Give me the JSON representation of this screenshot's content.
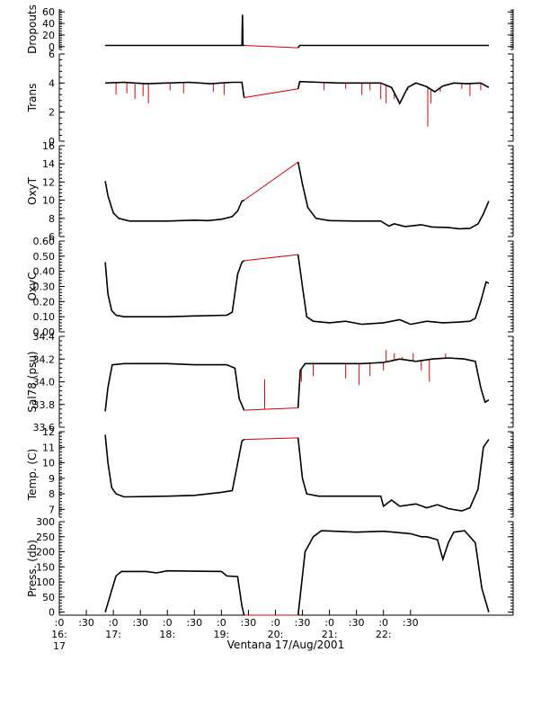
{
  "figure": {
    "caption": "Ventana 17/Aug/2001",
    "x_ticks": [
      {
        "line1": ":0",
        "line2": "16:",
        "line3": "17"
      },
      {
        "line1": ":30",
        "line2": "",
        "line3": ""
      },
      {
        "line1": ":0",
        "line2": "17:",
        "line3": ""
      },
      {
        "line1": ":30",
        "line2": "",
        "line3": ""
      },
      {
        "line1": ":0",
        "line2": "18:",
        "line3": ""
      },
      {
        "line1": ":30",
        "line2": "",
        "line3": ""
      },
      {
        "line1": ":0",
        "line2": "19:",
        "line3": ""
      },
      {
        "line1": ":30",
        "line2": "",
        "line3": ""
      },
      {
        "line1": ":0",
        "line2": "20:",
        "line3": ""
      },
      {
        "line1": ":30",
        "line2": "",
        "line3": ""
      },
      {
        "line1": ":0",
        "line2": "21:",
        "line3": ""
      },
      {
        "line1": ":30",
        "line2": "",
        "line3": ""
      },
      {
        "line1": ":0",
        "line2": "22:",
        "line3": ""
      },
      {
        "line1": ":30",
        "line2": "",
        "line3": ""
      }
    ],
    "colors": {
      "data": "#000000",
      "raw": "#dd0000",
      "axis": "#000000"
    }
  },
  "chart_data": [
    {
      "type": "line",
      "ylabel": "Dropouts",
      "ylim": [
        -5,
        65
      ],
      "ytick_labels": [
        "0",
        "20",
        "40",
        "60"
      ],
      "ytick_values": [
        0,
        20,
        40,
        60
      ],
      "x_unit": "hours_since_16:00",
      "series": [
        {
          "values": [
            [
              0.85,
              2
            ],
            [
              2.35,
              2
            ],
            [
              3.38,
              2
            ],
            [
              3.39,
              55
            ],
            [
              3.4,
              2
            ],
            [
              3.42,
              2
            ],
            [
              4.42,
              -2
            ],
            [
              4.45,
              2
            ],
            [
              7.95,
              2
            ]
          ]
        }
      ]
    },
    {
      "type": "line",
      "ylabel": "Trans",
      "ylim": [
        0,
        6
      ],
      "ytick_labels": [
        "0",
        "2",
        "4",
        "6"
      ],
      "ytick_values": [
        0,
        2,
        4,
        6
      ],
      "x_unit": "hours_since_16:00",
      "series": [
        {
          "values": [
            [
              0.85,
              4.0
            ],
            [
              1.2,
              4.05
            ],
            [
              1.6,
              3.95
            ],
            [
              2.0,
              4.0
            ],
            [
              2.4,
              4.05
            ],
            [
              2.8,
              3.95
            ],
            [
              3.2,
              4.05
            ],
            [
              3.38,
              4.05
            ],
            [
              3.42,
              3.0
            ],
            [
              4.42,
              3.6
            ],
            [
              4.45,
              4.1
            ],
            [
              4.8,
              4.05
            ],
            [
              5.2,
              4.0
            ],
            [
              5.6,
              4.0
            ],
            [
              5.95,
              4.0
            ],
            [
              6.15,
              3.7
            ],
            [
              6.3,
              2.6
            ],
            [
              6.45,
              3.7
            ],
            [
              6.6,
              4.0
            ],
            [
              6.8,
              3.75
            ],
            [
              6.95,
              3.4
            ],
            [
              7.1,
              3.8
            ],
            [
              7.3,
              4.0
            ],
            [
              7.55,
              3.95
            ],
            [
              7.8,
              4.0
            ],
            [
              7.95,
              3.7
            ]
          ]
        }
      ],
      "spikes": [
        [
          1.05,
          3.2
        ],
        [
          1.25,
          3.3
        ],
        [
          1.4,
          2.9
        ],
        [
          1.55,
          3.1
        ],
        [
          1.65,
          2.6
        ],
        [
          2.05,
          3.5
        ],
        [
          2.3,
          3.3
        ],
        [
          2.85,
          3.4
        ],
        [
          3.05,
          3.2
        ],
        [
          4.9,
          3.5
        ],
        [
          5.3,
          3.6
        ],
        [
          5.6,
          3.2
        ],
        [
          5.75,
          3.5
        ],
        [
          5.95,
          2.9
        ],
        [
          6.05,
          2.6
        ],
        [
          6.2,
          2.9
        ],
        [
          6.45,
          3.5
        ],
        [
          6.82,
          1.0
        ],
        [
          6.88,
          2.6
        ],
        [
          7.05,
          3.4
        ],
        [
          7.45,
          3.6
        ],
        [
          7.6,
          3.1
        ],
        [
          7.8,
          3.5
        ]
      ]
    },
    {
      "type": "line",
      "ylabel": "OxyT",
      "ylim": [
        6,
        16
      ],
      "ytick_labels": [
        "6",
        "8",
        "10",
        "12",
        "14",
        "16"
      ],
      "ytick_values": [
        6,
        8,
        10,
        12,
        14,
        16
      ],
      "x_unit": "hours_since_16:00",
      "series": [
        {
          "values": [
            [
              0.85,
              12.1
            ],
            [
              0.9,
              10.5
            ],
            [
              1.0,
              8.6
            ],
            [
              1.1,
              8.0
            ],
            [
              1.3,
              7.7
            ],
            [
              2.0,
              7.7
            ],
            [
              2.5,
              7.8
            ],
            [
              2.75,
              7.75
            ],
            [
              3.0,
              7.9
            ],
            [
              3.2,
              8.2
            ],
            [
              3.3,
              8.8
            ],
            [
              3.38,
              9.9
            ],
            [
              3.42,
              10.0
            ],
            [
              4.42,
              14.2
            ],
            [
              4.5,
              11.8
            ],
            [
              4.6,
              9.2
            ],
            [
              4.75,
              8.0
            ],
            [
              5.0,
              7.75
            ],
            [
              5.5,
              7.7
            ],
            [
              5.95,
              7.7
            ],
            [
              6.1,
              7.15
            ],
            [
              6.2,
              7.4
            ],
            [
              6.4,
              7.1
            ],
            [
              6.7,
              7.3
            ],
            [
              6.9,
              7.05
            ],
            [
              7.2,
              7.0
            ],
            [
              7.4,
              6.85
            ],
            [
              7.6,
              6.9
            ],
            [
              7.75,
              7.4
            ],
            [
              7.85,
              8.5
            ],
            [
              7.95,
              9.9
            ]
          ]
        }
      ]
    },
    {
      "type": "line",
      "ylabel": "OxyC",
      "ylim": [
        0,
        0.6
      ],
      "ytick_labels": [
        "0.00",
        "0.10",
        "0.20",
        "0.30",
        "0.40",
        "0.50",
        "0.60"
      ],
      "ytick_values": [
        0,
        0.1,
        0.2,
        0.3,
        0.4,
        0.5,
        0.6
      ],
      "x_unit": "hours_since_16:00",
      "series": [
        {
          "values": [
            [
              0.85,
              0.46
            ],
            [
              0.9,
              0.25
            ],
            [
              0.97,
              0.14
            ],
            [
              1.05,
              0.11
            ],
            [
              1.2,
              0.1
            ],
            [
              2.0,
              0.1
            ],
            [
              2.5,
              0.105
            ],
            [
              3.1,
              0.11
            ],
            [
              3.2,
              0.13
            ],
            [
              3.3,
              0.38
            ],
            [
              3.38,
              0.46
            ],
            [
              3.42,
              0.47
            ],
            [
              4.42,
              0.51
            ],
            [
              4.5,
              0.3
            ],
            [
              4.58,
              0.1
            ],
            [
              4.7,
              0.07
            ],
            [
              5.0,
              0.06
            ],
            [
              5.3,
              0.07
            ],
            [
              5.6,
              0.05
            ],
            [
              6.0,
              0.06
            ],
            [
              6.3,
              0.08
            ],
            [
              6.5,
              0.05
            ],
            [
              6.8,
              0.07
            ],
            [
              7.1,
              0.06
            ],
            [
              7.4,
              0.065
            ],
            [
              7.6,
              0.07
            ],
            [
              7.7,
              0.09
            ],
            [
              7.8,
              0.2
            ],
            [
              7.9,
              0.33
            ],
            [
              7.95,
              0.32
            ]
          ]
        }
      ]
    },
    {
      "type": "line",
      "ylabel": "Sal78 (psu)",
      "ylim": [
        33.6,
        34.4
      ],
      "ytick_labels": [
        "33.6",
        "33.8",
        "34.0",
        "34.2",
        "34.4"
      ],
      "ytick_values": [
        33.6,
        33.8,
        34.0,
        34.2,
        34.4
      ],
      "x_unit": "hours_since_16:00",
      "series": [
        {
          "values": [
            [
              0.85,
              33.74
            ],
            [
              0.9,
              33.95
            ],
            [
              0.98,
              34.15
            ],
            [
              1.2,
              34.16
            ],
            [
              2.0,
              34.16
            ],
            [
              2.5,
              34.15
            ],
            [
              3.1,
              34.15
            ],
            [
              3.25,
              34.12
            ],
            [
              3.33,
              33.85
            ],
            [
              3.42,
              33.75
            ],
            [
              4.42,
              33.77
            ],
            [
              4.46,
              34.1
            ],
            [
              4.55,
              34.16
            ],
            [
              5.0,
              34.16
            ],
            [
              5.6,
              34.16
            ],
            [
              6.0,
              34.17
            ],
            [
              6.3,
              34.2
            ],
            [
              6.6,
              34.18
            ],
            [
              6.9,
              34.2
            ],
            [
              7.2,
              34.21
            ],
            [
              7.5,
              34.2
            ],
            [
              7.7,
              34.18
            ],
            [
              7.8,
              33.95
            ],
            [
              7.88,
              33.82
            ],
            [
              7.95,
              33.84
            ]
          ]
        }
      ],
      "spikes": [
        [
          3.8,
          34.02
        ],
        [
          4.48,
          34.0
        ],
        [
          4.7,
          34.05
        ],
        [
          5.3,
          34.03
        ],
        [
          5.55,
          33.97
        ],
        [
          5.75,
          34.05
        ],
        [
          6.0,
          34.1
        ],
        [
          6.05,
          34.28
        ],
        [
          6.2,
          34.25
        ],
        [
          6.35,
          34.22
        ],
        [
          6.55,
          34.25
        ],
        [
          6.7,
          34.1
        ],
        [
          6.85,
          34.0
        ],
        [
          7.15,
          34.25
        ]
      ]
    },
    {
      "type": "line",
      "ylabel": "Temp. (C)",
      "ylim": [
        6.5,
        12
      ],
      "ytick_labels": [
        "7",
        "8",
        "9",
        "10",
        "11",
        "12"
      ],
      "ytick_values": [
        7,
        8,
        9,
        10,
        11,
        12
      ],
      "x_unit": "hours_since_16:00",
      "series": [
        {
          "values": [
            [
              0.85,
              11.8
            ],
            [
              0.9,
              10.0
            ],
            [
              0.97,
              8.4
            ],
            [
              1.05,
              8.0
            ],
            [
              1.2,
              7.8
            ],
            [
              2.0,
              7.85
            ],
            [
              2.5,
              7.9
            ],
            [
              3.0,
              8.1
            ],
            [
              3.2,
              8.2
            ],
            [
              3.28,
              9.6
            ],
            [
              3.38,
              11.4
            ],
            [
              3.42,
              11.5
            ],
            [
              4.42,
              11.6
            ],
            [
              4.5,
              9.0
            ],
            [
              4.58,
              8.0
            ],
            [
              4.8,
              7.85
            ],
            [
              5.5,
              7.85
            ],
            [
              5.95,
              7.85
            ],
            [
              6.0,
              7.2
            ],
            [
              6.15,
              7.6
            ],
            [
              6.3,
              7.2
            ],
            [
              6.6,
              7.35
            ],
            [
              6.8,
              7.1
            ],
            [
              7.0,
              7.3
            ],
            [
              7.2,
              7.05
            ],
            [
              7.45,
              6.9
            ],
            [
              7.6,
              7.1
            ],
            [
              7.75,
              8.3
            ],
            [
              7.85,
              11.0
            ],
            [
              7.95,
              11.5
            ]
          ]
        }
      ]
    },
    {
      "type": "line",
      "ylabel": "Press. (db)",
      "ylim": [
        -10,
        300
      ],
      "ytick_labels": [
        "0",
        "50",
        "100",
        "150",
        "200",
        "250",
        "300"
      ],
      "ytick_values": [
        0,
        50,
        100,
        150,
        200,
        250,
        300
      ],
      "x_unit": "hours_since_16:00",
      "series": [
        {
          "values": [
            [
              0.85,
              0
            ],
            [
              0.95,
              60
            ],
            [
              1.05,
              120
            ],
            [
              1.15,
              135
            ],
            [
              1.6,
              135
            ],
            [
              1.8,
              130
            ],
            [
              2.0,
              137
            ],
            [
              3.0,
              135
            ],
            [
              3.1,
              120
            ],
            [
              3.3,
              118
            ],
            [
              3.38,
              20
            ],
            [
              3.42,
              -10
            ],
            [
              4.42,
              -10
            ],
            [
              4.55,
              200
            ],
            [
              4.7,
              250
            ],
            [
              4.85,
              270
            ],
            [
              5.5,
              265
            ],
            [
              6.0,
              268
            ],
            [
              6.5,
              260
            ],
            [
              6.7,
              250
            ],
            [
              6.8,
              250
            ],
            [
              7.0,
              240
            ],
            [
              7.1,
              175
            ],
            [
              7.2,
              230
            ],
            [
              7.3,
              265
            ],
            [
              7.5,
              270
            ],
            [
              7.7,
              230
            ],
            [
              7.82,
              80
            ],
            [
              7.95,
              0
            ]
          ]
        }
      ]
    }
  ]
}
